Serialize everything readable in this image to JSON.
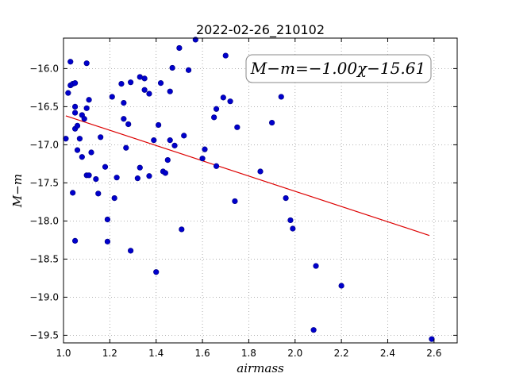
{
  "chart_data": {
    "type": "scatter",
    "title": "2022-02-26_210102",
    "xlabel": "airmass",
    "ylabel": "M−m",
    "xlim": [
      1.0,
      2.7
    ],
    "ylim": [
      -19.6,
      -15.6
    ],
    "y_inverted": true,
    "grid": true,
    "xticks": [
      "1.0",
      "1.2",
      "1.4",
      "1.6",
      "1.8",
      "2.0",
      "2.2",
      "2.4",
      "2.6"
    ],
    "yticks": [
      "−16.0",
      "−16.5",
      "−17.0",
      "−17.5",
      "−18.0",
      "−18.5",
      "−19.0",
      "−19.5"
    ],
    "annotation": "M−m=−1.00χ−15.61",
    "colors": {
      "points": "#0000cc",
      "fit": "#dd0000"
    },
    "fit": {
      "slope": -1.0,
      "intercept": -15.61,
      "x": [
        1.01,
        2.58
      ]
    },
    "points": [
      [
        1.01,
        -16.92
      ],
      [
        1.02,
        -16.32
      ],
      [
        1.03,
        -15.91
      ],
      [
        1.03,
        -16.22
      ],
      [
        1.04,
        -16.2
      ],
      [
        1.04,
        -17.63
      ],
      [
        1.05,
        -18.26
      ],
      [
        1.05,
        -16.58
      ],
      [
        1.05,
        -16.5
      ],
      [
        1.05,
        -16.19
      ],
      [
        1.05,
        -16.79
      ],
      [
        1.06,
        -17.07
      ],
      [
        1.06,
        -16.75
      ],
      [
        1.07,
        -16.92
      ],
      [
        1.08,
        -16.61
      ],
      [
        1.08,
        -17.16
      ],
      [
        1.09,
        -16.66
      ],
      [
        1.1,
        -15.93
      ],
      [
        1.1,
        -17.4
      ],
      [
        1.1,
        -16.52
      ],
      [
        1.11,
        -16.41
      ],
      [
        1.11,
        -17.4
      ],
      [
        1.12,
        -17.1
      ],
      [
        1.14,
        -17.45
      ],
      [
        1.15,
        -17.64
      ],
      [
        1.16,
        -16.9
      ],
      [
        1.18,
        -17.29
      ],
      [
        1.19,
        -18.27
      ],
      [
        1.19,
        -17.98
      ],
      [
        1.21,
        -16.37
      ],
      [
        1.22,
        -17.7
      ],
      [
        1.23,
        -17.43
      ],
      [
        1.25,
        -16.2
      ],
      [
        1.26,
        -16.45
      ],
      [
        1.26,
        -16.66
      ],
      [
        1.27,
        -17.04
      ],
      [
        1.28,
        -16.73
      ],
      [
        1.29,
        -18.39
      ],
      [
        1.29,
        -16.18
      ],
      [
        1.32,
        -17.44
      ],
      [
        1.33,
        -16.11
      ],
      [
        1.33,
        -17.3
      ],
      [
        1.35,
        -16.28
      ],
      [
        1.35,
        -16.13
      ],
      [
        1.37,
        -17.41
      ],
      [
        1.37,
        -16.33
      ],
      [
        1.39,
        -16.94
      ],
      [
        1.4,
        -18.67
      ],
      [
        1.41,
        -16.74
      ],
      [
        1.42,
        -16.19
      ],
      [
        1.43,
        -17.35
      ],
      [
        1.44,
        -17.37
      ],
      [
        1.45,
        -17.2
      ],
      [
        1.46,
        -16.3
      ],
      [
        1.46,
        -16.94
      ],
      [
        1.47,
        -15.99
      ],
      [
        1.48,
        -17.01
      ],
      [
        1.5,
        -15.73
      ],
      [
        1.51,
        -18.11
      ],
      [
        1.52,
        -16.88
      ],
      [
        1.54,
        -16.02
      ],
      [
        1.57,
        -15.62
      ],
      [
        1.6,
        -17.18
      ],
      [
        1.61,
        -17.06
      ],
      [
        1.65,
        -16.64
      ],
      [
        1.66,
        -16.53
      ],
      [
        1.66,
        -17.28
      ],
      [
        1.69,
        -16.38
      ],
      [
        1.7,
        -15.83
      ],
      [
        1.72,
        -16.43
      ],
      [
        1.74,
        -17.74
      ],
      [
        1.75,
        -16.77
      ],
      [
        1.85,
        -17.35
      ],
      [
        1.9,
        -16.71
      ],
      [
        1.94,
        -16.37
      ],
      [
        1.96,
        -17.7
      ],
      [
        1.98,
        -17.99
      ],
      [
        1.99,
        -18.1
      ],
      [
        2.09,
        -18.59
      ],
      [
        2.08,
        -19.43
      ],
      [
        2.2,
        -18.85
      ],
      [
        2.59,
        -19.55
      ]
    ]
  }
}
